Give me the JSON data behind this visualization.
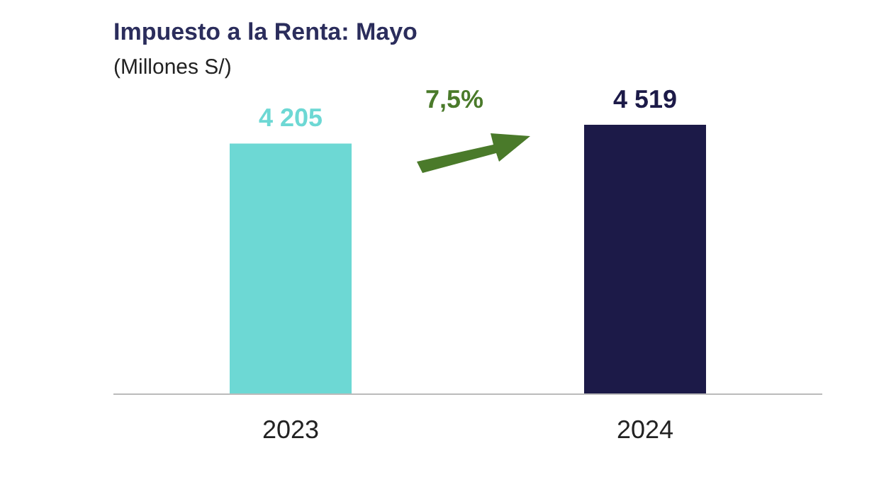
{
  "chart_data": {
    "type": "bar",
    "title": "Impuesto a la Renta: Mayo",
    "subtitle": "(Millones S/)",
    "categories": [
      "2023",
      "2024"
    ],
    "values": [
      4205,
      4519
    ],
    "colors": [
      "#6dd8d4",
      "#1c1a48"
    ],
    "data_labels": true,
    "annotations": [
      "7,5%"
    ],
    "grid": false,
    "legend": false
  }
}
